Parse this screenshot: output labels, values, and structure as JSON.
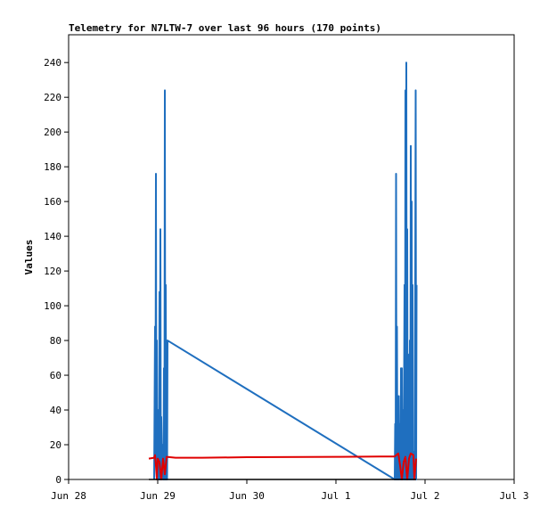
{
  "chart_data": {
    "type": "line",
    "title": "Telemetry for N7LTW-7 over last 96 hours (170 points)",
    "xlabel": "",
    "ylabel": "Values",
    "x_ticks": [
      "Jun 28",
      "Jun 29",
      "Jun 30",
      "Jul 1",
      "Jul 2",
      "Jul 3"
    ],
    "y_ticks": [
      "0",
      "20",
      "40",
      "60",
      "80",
      "100",
      "120",
      "140",
      "160",
      "180",
      "200",
      "220",
      "240"
    ],
    "xlim_days": [
      0,
      5
    ],
    "ylim": [
      0,
      256
    ],
    "grid": false,
    "series": [
      {
        "color": "#1f6fbf",
        "points": [
          [
            0.96,
            0
          ],
          [
            0.97,
            88
          ],
          [
            0.975,
            10
          ],
          [
            0.98,
            176
          ],
          [
            0.985,
            5
          ],
          [
            0.99,
            80
          ],
          [
            0.995,
            0
          ],
          [
            1.0,
            40
          ],
          [
            1.005,
            2
          ],
          [
            1.01,
            10
          ],
          [
            1.015,
            0
          ],
          [
            1.02,
            108
          ],
          [
            1.025,
            0
          ],
          [
            1.03,
            144
          ],
          [
            1.035,
            0
          ],
          [
            1.04,
            36
          ],
          [
            1.05,
            0
          ],
          [
            1.06,
            20
          ],
          [
            1.065,
            0
          ],
          [
            1.07,
            64
          ],
          [
            1.075,
            0
          ],
          [
            1.08,
            224
          ],
          [
            1.085,
            0
          ],
          [
            1.09,
            112
          ],
          [
            1.095,
            0
          ],
          [
            1.1,
            40
          ],
          [
            1.105,
            0
          ],
          [
            1.11,
            80
          ],
          [
            3.66,
            0
          ],
          [
            3.665,
            32
          ],
          [
            3.67,
            0
          ],
          [
            3.675,
            176
          ],
          [
            3.68,
            0
          ],
          [
            3.685,
            88
          ],
          [
            3.69,
            0
          ],
          [
            3.695,
            48
          ],
          [
            3.7,
            0
          ],
          [
            3.705,
            48
          ],
          [
            3.71,
            0
          ],
          [
            3.72,
            32
          ],
          [
            3.725,
            0
          ],
          [
            3.73,
            64
          ],
          [
            3.735,
            0
          ],
          [
            3.74,
            64
          ],
          [
            3.745,
            0
          ],
          [
            3.755,
            40
          ],
          [
            3.76,
            0
          ],
          [
            3.77,
            112
          ],
          [
            3.775,
            0
          ],
          [
            3.78,
            224
          ],
          [
            3.785,
            0
          ],
          [
            3.79,
            240
          ],
          [
            3.795,
            0
          ],
          [
            3.8,
            144
          ],
          [
            3.805,
            0
          ],
          [
            3.81,
            72
          ],
          [
            3.815,
            0
          ],
          [
            3.82,
            32
          ],
          [
            3.825,
            0
          ],
          [
            3.83,
            80
          ],
          [
            3.835,
            0
          ],
          [
            3.84,
            192
          ],
          [
            3.845,
            0
          ],
          [
            3.85,
            160
          ],
          [
            3.855,
            0
          ],
          [
            3.86,
            112
          ],
          [
            3.865,
            0
          ],
          [
            3.87,
            8
          ],
          [
            3.875,
            0
          ],
          [
            3.88,
            16
          ],
          [
            3.885,
            0
          ],
          [
            3.895,
            224
          ],
          [
            3.9,
            0
          ],
          [
            3.905,
            112
          ]
        ]
      },
      {
        "color": "#e00000",
        "points": [
          [
            0.9,
            12
          ],
          [
            0.96,
            12.5
          ],
          [
            0.97,
            14
          ],
          [
            0.98,
            8
          ],
          [
            0.99,
            0
          ],
          [
            1.0,
            12
          ],
          [
            1.02,
            10
          ],
          [
            1.04,
            0
          ],
          [
            1.06,
            12
          ],
          [
            1.08,
            3
          ],
          [
            1.1,
            13
          ],
          [
            1.2,
            12.5
          ],
          [
            1.5,
            12.5
          ],
          [
            2.0,
            12.8
          ],
          [
            3.0,
            13
          ],
          [
            3.5,
            13.2
          ],
          [
            3.66,
            13.2
          ],
          [
            3.7,
            15
          ],
          [
            3.72,
            8
          ],
          [
            3.74,
            0
          ],
          [
            3.76,
            10
          ],
          [
            3.78,
            13
          ],
          [
            3.8,
            0
          ],
          [
            3.82,
            12
          ],
          [
            3.84,
            15
          ],
          [
            3.87,
            14
          ],
          [
            3.88,
            0
          ],
          [
            3.9,
            12
          ]
        ]
      },
      {
        "color": "#000000",
        "points": [
          [
            0.9,
            0
          ],
          [
            3.9,
            0
          ]
        ]
      }
    ]
  }
}
